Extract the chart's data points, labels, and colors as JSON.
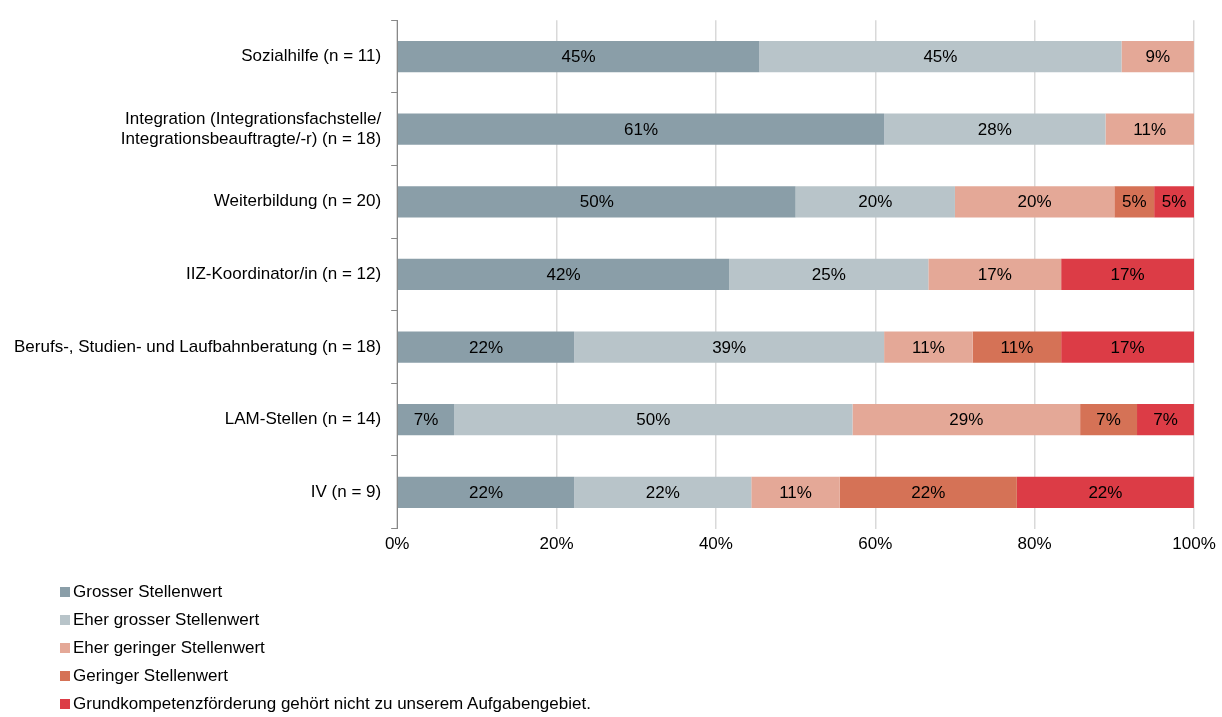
{
  "chart_data": {
    "type": "bar",
    "orientation": "horizontal",
    "stacked": true,
    "grid": "x",
    "legend": "bottom",
    "categories": [
      "Sozialhilfe (n = 11)",
      "Integration (Integrationsfachstelle/ Integrationsbeauftragte/-r) (n = 18)",
      "Weiterbildung (n = 20)",
      "IIZ-Koordinator/in (n = 12)",
      "Berufs-, Studien- und Laufbahnberatung (n = 18)",
      "LAM-Stellen (n = 14)",
      "IV (n = 9)"
    ],
    "xlim": [
      0,
      100
    ],
    "xticks": [
      {
        "value": 0,
        "label": "0%"
      },
      {
        "value": 20,
        "label": "20%"
      },
      {
        "value": 40,
        "label": "40%"
      },
      {
        "value": 60,
        "label": "60%"
      },
      {
        "value": 80,
        "label": "80%"
      },
      {
        "value": 100,
        "label": "100%"
      }
    ],
    "series": [
      {
        "name": "Grosser Stellenwert",
        "color": "#8a9ea8",
        "values": [
          45.45,
          61.11,
          50,
          41.66,
          22.22,
          7.14,
          22.22
        ],
        "value_labels": [
          "45%",
          "61%",
          "50%",
          "42%",
          "22%",
          "7%",
          "22%"
        ]
      },
      {
        "name": "Eher grosser Stellenwert",
        "color": "#b8c4c9",
        "values": [
          45.45,
          27.78,
          20,
          25,
          38.89,
          50,
          22.22
        ],
        "value_labels": [
          "45%",
          "28%",
          "20%",
          "25%",
          "39%",
          "50%",
          "22%"
        ]
      },
      {
        "name": "Eher geringer Stellenwert",
        "color": "#e4a897",
        "values": [
          9.09,
          11.11,
          20,
          16.67,
          11.11,
          28.57,
          11.11
        ],
        "value_labels": [
          "9%",
          "11%",
          "20%",
          "17%",
          "11%",
          "29%",
          "11%"
        ]
      },
      {
        "name": "Geringer Stellenwert",
        "color": "#d57256",
        "values": [
          null,
          null,
          5,
          null,
          11.11,
          7.14,
          22.22
        ],
        "value_labels": [
          null,
          null,
          "5%",
          null,
          "11%",
          "7%",
          "22%"
        ]
      },
      {
        "name": "Grundkompetenzförderung gehört nicht zu unserem Aufgabengebiet.",
        "color": "#dc3c46",
        "values": [
          null,
          null,
          5,
          16.67,
          16.67,
          7.14,
          22.22
        ],
        "value_labels": [
          null,
          null,
          "5%",
          "17%",
          "17%",
          "7%",
          "22%"
        ]
      }
    ]
  }
}
